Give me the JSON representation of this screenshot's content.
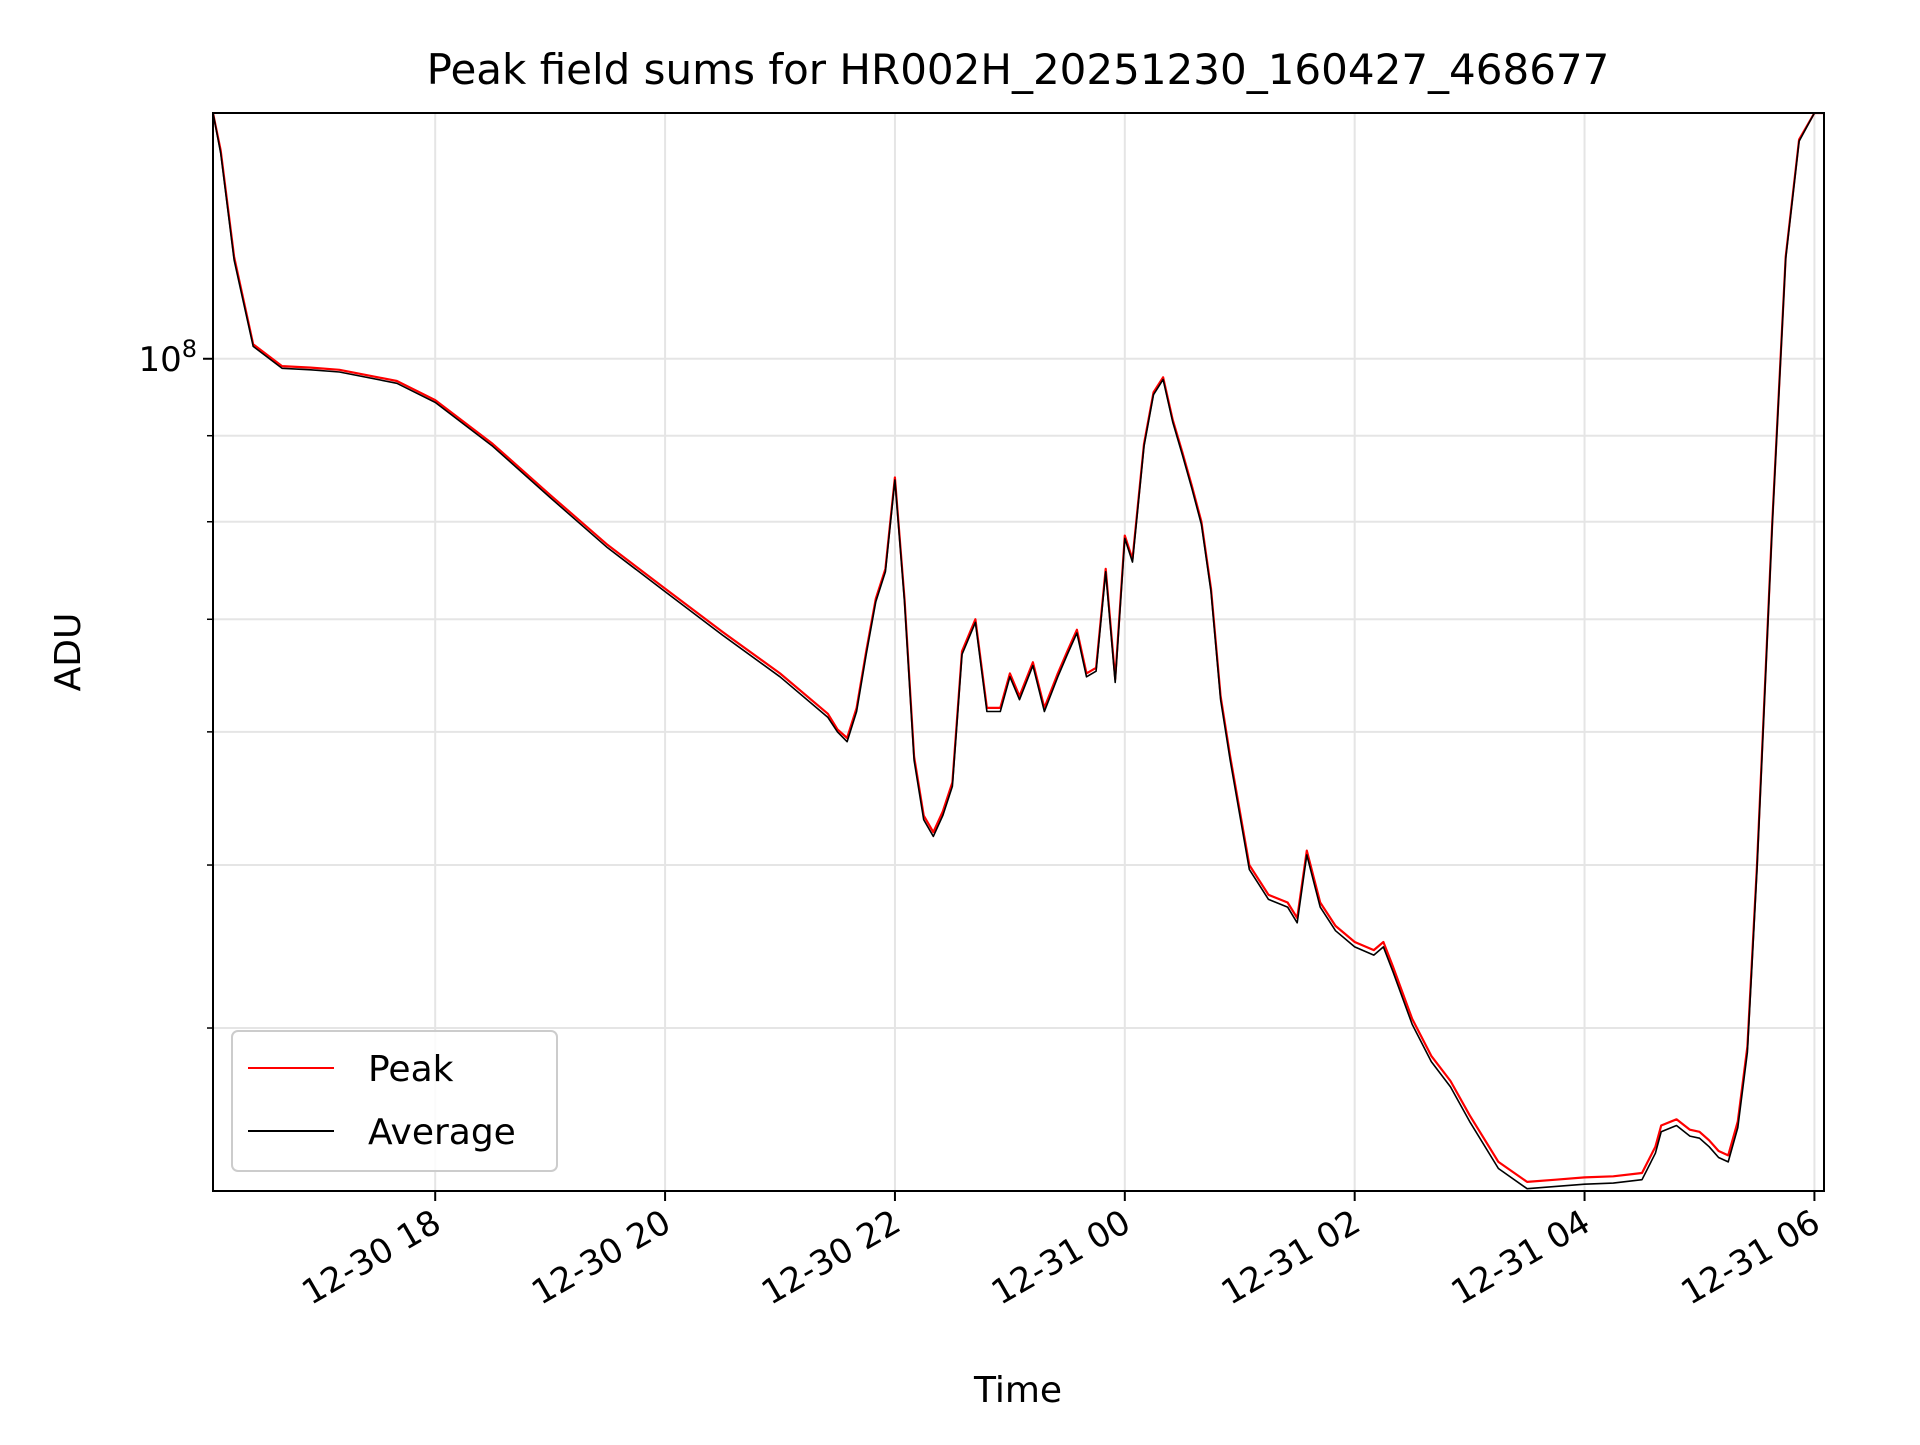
{
  "chart_data": {
    "type": "line",
    "title": "Peak field sums for HR002H_20251230_160427_468677",
    "xlabel": "Time",
    "ylabel": "ADU",
    "y_scale": "log",
    "ylim": [
      32000000,
      140000000
    ],
    "xlim": [
      "2025-12-30T16:04",
      "2025-12-31T06:05"
    ],
    "x_ticks": [
      "12-30 18",
      "12-30 20",
      "12-30 22",
      "12-31 00",
      "12-31 02",
      "12-31 04",
      "12-31 06"
    ],
    "x_tick_values": [
      "2025-12-30T18:00",
      "2025-12-30T20:00",
      "2025-12-30T22:00",
      "2025-12-31T00:00",
      "2025-12-31T02:00",
      "2025-12-31T04:00",
      "2025-12-31T06:00"
    ],
    "y_tick_label": "10^8",
    "y_major_ticks": [
      100000000
    ],
    "y_minor_ticks": [
      40000000,
      50000000,
      60000000,
      70000000,
      80000000,
      90000000,
      200000000
    ],
    "grid": true,
    "legend_position": "lower-left",
    "series": [
      {
        "name": "Peak",
        "color": "#ff0000",
        "x": [
          "2025-12-30T16:04",
          "2025-12-30T16:08",
          "2025-12-30T16:15",
          "2025-12-30T16:25",
          "2025-12-30T16:40",
          "2025-12-30T16:55",
          "2025-12-30T17:10",
          "2025-12-30T17:40",
          "2025-12-30T18:00",
          "2025-12-30T18:30",
          "2025-12-30T19:00",
          "2025-12-30T19:30",
          "2025-12-30T20:00",
          "2025-12-30T20:30",
          "2025-12-30T21:00",
          "2025-12-30T21:25",
          "2025-12-30T21:30",
          "2025-12-30T21:35",
          "2025-12-30T21:40",
          "2025-12-30T21:45",
          "2025-12-30T21:50",
          "2025-12-30T21:55",
          "2025-12-30T22:00",
          "2025-12-30T22:05",
          "2025-12-30T22:10",
          "2025-12-30T22:15",
          "2025-12-30T22:20",
          "2025-12-30T22:25",
          "2025-12-30T22:30",
          "2025-12-30T22:35",
          "2025-12-30T22:42",
          "2025-12-30T22:48",
          "2025-12-30T22:55",
          "2025-12-30T23:00",
          "2025-12-30T23:05",
          "2025-12-30T23:12",
          "2025-12-30T23:18",
          "2025-12-30T23:25",
          "2025-12-30T23:30",
          "2025-12-30T23:35",
          "2025-12-30T23:40",
          "2025-12-30T23:45",
          "2025-12-30T23:50",
          "2025-12-30T23:55",
          "2025-12-31T00:00",
          "2025-12-31T00:04",
          "2025-12-31T00:10",
          "2025-12-31T00:15",
          "2025-12-31T00:20",
          "2025-12-31T00:25",
          "2025-12-31T00:30",
          "2025-12-31T00:35",
          "2025-12-31T00:40",
          "2025-12-31T00:45",
          "2025-12-31T00:50",
          "2025-12-31T00:55",
          "2025-12-31T01:05",
          "2025-12-31T01:15",
          "2025-12-31T01:25",
          "2025-12-31T01:30",
          "2025-12-31T01:35",
          "2025-12-31T01:42",
          "2025-12-31T01:50",
          "2025-12-31T02:00",
          "2025-12-31T02:10",
          "2025-12-31T02:15",
          "2025-12-31T02:20",
          "2025-12-31T02:30",
          "2025-12-31T02:40",
          "2025-12-31T02:50",
          "2025-12-31T03:00",
          "2025-12-31T03:15",
          "2025-12-31T03:30",
          "2025-12-31T03:45",
          "2025-12-31T04:00",
          "2025-12-31T04:15",
          "2025-12-31T04:30",
          "2025-12-31T04:37",
          "2025-12-31T04:40",
          "2025-12-31T04:48",
          "2025-12-31T04:55",
          "2025-12-31T05:00",
          "2025-12-31T05:05",
          "2025-12-31T05:10",
          "2025-12-31T05:15",
          "2025-12-31T05:20",
          "2025-12-31T05:25",
          "2025-12-31T05:30",
          "2025-12-31T05:38",
          "2025-12-31T05:45",
          "2025-12-31T05:52",
          "2025-12-31T06:00",
          "2025-12-31T06:05"
        ],
        "y": [
          140000000,
          133000000,
          115000000,
          102000000,
          99000000,
          98800000,
          98500000,
          97000000,
          94500000,
          89000000,
          83000000,
          77500000,
          73000000,
          68800000,
          65000000,
          61500000,
          60200000,
          59500000,
          62000000,
          67000000,
          72000000,
          75000000,
          85000000,
          72000000,
          58000000,
          53500000,
          52300000,
          53800000,
          56000000,
          67000000,
          70000000,
          62000000,
          62000000,
          65000000,
          63000000,
          66000000,
          62000000,
          65000000,
          67000000,
          69000000,
          65000000,
          65500000,
          75000000,
          64500000,
          78500000,
          76000000,
          89000000,
          95500000,
          97500000,
          92000000,
          88000000,
          84000000,
          80000000,
          73000000,
          63000000,
          58000000,
          50000000,
          48000000,
          47500000,
          46500000,
          51000000,
          47500000,
          46000000,
          45000000,
          44500000,
          45000000,
          43500000,
          40500000,
          38500000,
          37200000,
          35500000,
          33300000,
          32400000,
          32500000,
          32600000,
          32650000,
          32800000,
          34000000,
          35000000,
          35300000,
          34800000,
          34700000,
          34300000,
          33800000,
          33600000,
          35200000,
          39000000,
          50000000,
          80000000,
          115000000,
          135000000,
          140000000,
          140000000
        ]
      },
      {
        "name": "Average",
        "color": "#000000",
        "x": [
          "2025-12-30T16:04",
          "2025-12-30T16:08",
          "2025-12-30T16:15",
          "2025-12-30T16:25",
          "2025-12-30T16:40",
          "2025-12-30T16:55",
          "2025-12-30T17:10",
          "2025-12-30T17:40",
          "2025-12-30T18:00",
          "2025-12-30T18:30",
          "2025-12-30T19:00",
          "2025-12-30T19:30",
          "2025-12-30T20:00",
          "2025-12-30T20:30",
          "2025-12-30T21:00",
          "2025-12-30T21:25",
          "2025-12-30T21:30",
          "2025-12-30T21:35",
          "2025-12-30T21:40",
          "2025-12-30T21:45",
          "2025-12-30T21:50",
          "2025-12-30T21:55",
          "2025-12-30T22:00",
          "2025-12-30T22:05",
          "2025-12-30T22:10",
          "2025-12-30T22:15",
          "2025-12-30T22:20",
          "2025-12-30T22:25",
          "2025-12-30T22:30",
          "2025-12-30T22:35",
          "2025-12-30T22:42",
          "2025-12-30T22:48",
          "2025-12-30T22:55",
          "2025-12-30T23:00",
          "2025-12-30T23:05",
          "2025-12-30T23:12",
          "2025-12-30T23:18",
          "2025-12-30T23:25",
          "2025-12-30T23:30",
          "2025-12-30T23:35",
          "2025-12-30T23:40",
          "2025-12-30T23:45",
          "2025-12-30T23:50",
          "2025-12-30T23:55",
          "2025-12-31T00:00",
          "2025-12-31T00:04",
          "2025-12-31T00:10",
          "2025-12-31T00:15",
          "2025-12-31T00:20",
          "2025-12-31T00:25",
          "2025-12-31T00:30",
          "2025-12-31T00:35",
          "2025-12-31T00:40",
          "2025-12-31T00:45",
          "2025-12-31T00:50",
          "2025-12-31T00:55",
          "2025-12-31T01:05",
          "2025-12-31T01:15",
          "2025-12-31T01:25",
          "2025-12-31T01:30",
          "2025-12-31T01:35",
          "2025-12-31T01:42",
          "2025-12-31T01:50",
          "2025-12-31T02:00",
          "2025-12-31T02:10",
          "2025-12-31T02:15",
          "2025-12-31T02:20",
          "2025-12-31T02:30",
          "2025-12-31T02:40",
          "2025-12-31T02:50",
          "2025-12-31T03:00",
          "2025-12-31T03:15",
          "2025-12-31T03:30",
          "2025-12-31T03:45",
          "2025-12-31T04:00",
          "2025-12-31T04:15",
          "2025-12-31T04:30",
          "2025-12-31T04:37",
          "2025-12-31T04:40",
          "2025-12-31T04:48",
          "2025-12-31T04:55",
          "2025-12-31T05:00",
          "2025-12-31T05:05",
          "2025-12-31T05:10",
          "2025-12-31T05:15",
          "2025-12-31T05:20",
          "2025-12-31T05:25",
          "2025-12-31T05:30",
          "2025-12-31T05:38",
          "2025-12-31T05:45",
          "2025-12-31T05:52",
          "2025-12-31T06:00",
          "2025-12-31T06:05"
        ],
        "y": [
          140000000,
          132500000,
          114500000,
          101700000,
          98700000,
          98500000,
          98200000,
          96700000,
          94200000,
          88700000,
          82700000,
          77200000,
          72700000,
          68500000,
          64700000,
          61200000,
          60000000,
          59200000,
          61700000,
          66700000,
          71700000,
          74700000,
          84700000,
          71700000,
          57700000,
          53200000,
          52000000,
          53500000,
          55700000,
          66700000,
          69700000,
          61700000,
          61700000,
          64700000,
          62700000,
          65700000,
          61700000,
          64700000,
          66700000,
          68700000,
          64700000,
          65200000,
          74700000,
          64200000,
          78200000,
          75700000,
          88700000,
          95200000,
          97200000,
          91700000,
          87700000,
          83700000,
          79700000,
          72700000,
          62700000,
          57700000,
          49700000,
          47700000,
          47200000,
          46200000,
          50700000,
          47200000,
          45700000,
          44700000,
          44200000,
          44700000,
          43200000,
          40200000,
          38200000,
          36900000,
          35200000,
          33000000,
          32100000,
          32200000,
          32300000,
          32350000,
          32500000,
          33700000,
          34700000,
          35000000,
          34500000,
          34400000,
          34000000,
          33500000,
          33300000,
          34900000,
          38700000,
          49700000,
          79700000,
          114700000,
          134700000,
          140000000,
          140000000
        ]
      }
    ]
  }
}
